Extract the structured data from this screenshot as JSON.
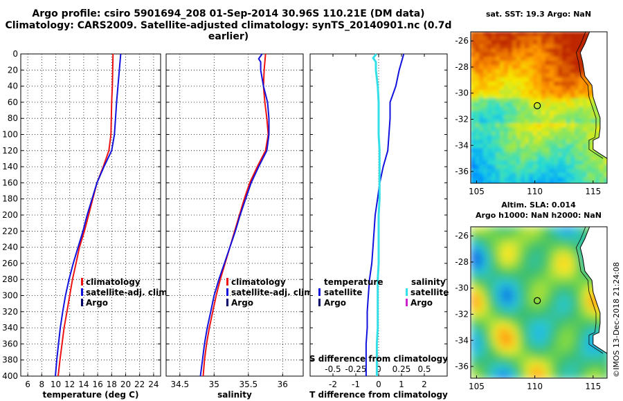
{
  "header": {
    "title_line1": "Argo profile: csiro 5901694_208 01-Sep-2014 30.96S 110.21E (DM data)",
    "title_line2": "Climatology: CARS2009. Satellite-adjusted climatology: synTS_20140901.nc (0.7d earlier)"
  },
  "maps": {
    "sst_title": "sat. SST: 19.3 Argo: NaN",
    "sla_title_line1": "Altim. SLA: 0.014",
    "sla_title_line2": "Argo h1000: NaN h2000: NaN",
    "lon_ticks": [
      "105",
      "110",
      "115"
    ],
    "lat_ticks": [
      "-26",
      "-28",
      "-30",
      "-32",
      "-34",
      "-36"
    ],
    "lon_range": [
      104.5,
      116.2
    ],
    "lat_range": [
      -36.9,
      -25.3
    ],
    "argo_position": {
      "lon": 110.21,
      "lat": -30.96
    }
  },
  "stamp": "©IMOS 13-Dec-2018 21:24:08",
  "colors": {
    "climatology": "#ee1111",
    "satellite": "#1111dd",
    "argo": "#000066",
    "salinity_satellite": "#33e0e8",
    "salinity_argo": "#cc22cc"
  },
  "chart_data": [
    {
      "type": "line",
      "xlabel": "temperature (deg C)",
      "ylabel": "",
      "xlim": [
        5,
        25
      ],
      "ylim": [
        400,
        0
      ],
      "xticks": [
        "6",
        "8",
        "10",
        "12",
        "14",
        "16",
        "18",
        "20",
        "22",
        "24"
      ],
      "yticks": [
        "0",
        "20",
        "40",
        "60",
        "80",
        "100",
        "120",
        "140",
        "160",
        "180",
        "200",
        "220",
        "240",
        "260",
        "280",
        "300",
        "320",
        "340",
        "360",
        "380",
        "400"
      ],
      "grid": true,
      "legend": [
        "climatology",
        "satellite-adj. clim.",
        "Argo"
      ],
      "legend_position": "bottom-left",
      "series": [
        {
          "name": "climatology",
          "depth": [
            0,
            20,
            40,
            60,
            80,
            100,
            120,
            140,
            160,
            180,
            200,
            220,
            240,
            260,
            280,
            300,
            320,
            340,
            360,
            380,
            400
          ],
          "values": [
            18.2,
            18.15,
            18.1,
            18.0,
            17.95,
            17.9,
            17.6,
            16.8,
            15.9,
            15.3,
            14.7,
            14.1,
            13.4,
            12.9,
            12.4,
            12.0,
            11.6,
            11.2,
            10.9,
            10.6,
            10.35
          ]
        },
        {
          "name": "satellite-adj. clim.",
          "depth": [
            0,
            20,
            40,
            60,
            80,
            100,
            120,
            140,
            160,
            180,
            200,
            220,
            240,
            260,
            280,
            300,
            320,
            340,
            360,
            380,
            400
          ],
          "values": [
            19.3,
            19.1,
            18.9,
            18.7,
            18.55,
            18.4,
            18.0,
            16.9,
            15.9,
            15.2,
            14.5,
            13.9,
            13.2,
            12.5,
            11.9,
            11.4,
            11.0,
            10.65,
            10.4,
            10.15,
            9.95
          ]
        }
      ]
    },
    {
      "type": "line",
      "xlabel": "salinity",
      "ylabel": "",
      "xlim": [
        34.3,
        36.3
      ],
      "ylim": [
        400,
        0
      ],
      "xticks": [
        "34.5",
        "35",
        "35.5",
        "36"
      ],
      "grid": true,
      "legend": [
        "climatology",
        "satellite-adj. clim.",
        "Argo"
      ],
      "legend_position": "bottom-left",
      "series": [
        {
          "name": "climatology",
          "depth": [
            0,
            20,
            40,
            60,
            80,
            100,
            120,
            140,
            160,
            180,
            200,
            220,
            240,
            260,
            280,
            300,
            320,
            340,
            360,
            380,
            400
          ],
          "values": [
            35.75,
            35.73,
            35.72,
            35.74,
            35.77,
            35.79,
            35.75,
            35.63,
            35.52,
            35.44,
            35.37,
            35.3,
            35.23,
            35.16,
            35.09,
            35.03,
            34.98,
            34.93,
            34.89,
            34.86,
            34.84
          ]
        },
        {
          "name": "satellite-adj. clim.",
          "depth": [
            0,
            6,
            10,
            20,
            40,
            60,
            80,
            100,
            120,
            140,
            160,
            180,
            200,
            220,
            240,
            260,
            280,
            300,
            320,
            340,
            360,
            380,
            400
          ],
          "values": [
            35.7,
            35.65,
            35.68,
            35.68,
            35.72,
            35.78,
            35.8,
            35.8,
            35.77,
            35.65,
            35.54,
            35.46,
            35.38,
            35.31,
            35.23,
            35.15,
            35.07,
            35.0,
            34.95,
            34.9,
            34.86,
            34.83,
            34.8
          ]
        }
      ]
    },
    {
      "type": "line",
      "xlabel": "T difference from climatology",
      "xlabel2": "S difference from climatology",
      "xlim": [
        -3,
        3
      ],
      "xlim_salinity": [
        -0.75,
        0.75
      ],
      "ylim": [
        400,
        0
      ],
      "xticks": [
        "-2",
        "-1",
        "0",
        "1",
        "2"
      ],
      "xticks_salinity": [
        "-0.5",
        "-0.25",
        "0",
        "0.25",
        "0.5"
      ],
      "grid": false,
      "legend_temperature_title": "temperature",
      "legend_salinity_title": "salinity",
      "legend_temperature": [
        "satellite",
        "Argo"
      ],
      "legend_salinity": [
        "satellite",
        "Argo"
      ],
      "series": [
        {
          "name": "temperature satellite",
          "depth": [
            0,
            20,
            40,
            60,
            80,
            100,
            120,
            140,
            160,
            180,
            200,
            220,
            240,
            260,
            280,
            300,
            320,
            340,
            360,
            380,
            400
          ],
          "values": [
            1.1,
            0.9,
            0.75,
            0.5,
            0.5,
            0.45,
            0.4,
            0.2,
            0.05,
            -0.05,
            -0.15,
            -0.2,
            -0.25,
            -0.3,
            -0.4,
            -0.45,
            -0.5,
            -0.5,
            -0.55,
            -0.55,
            -0.55
          ]
        },
        {
          "name": "salinity satellite",
          "depth": [
            0,
            5,
            10,
            20,
            40,
            60,
            80,
            100,
            120,
            140,
            160,
            180,
            200,
            220,
            240,
            260,
            280,
            300,
            320,
            340,
            360,
            380,
            400
          ],
          "values": [
            -0.025,
            -0.06,
            -0.03,
            -0.03,
            -0.01,
            0.0,
            0.0,
            0.0,
            0.01,
            0.01,
            0.01,
            0.01,
            0.0,
            0.0,
            0.0,
            0.0,
            -0.01,
            -0.01,
            -0.01,
            -0.01,
            -0.02,
            -0.02,
            -0.02
          ]
        }
      ]
    }
  ]
}
